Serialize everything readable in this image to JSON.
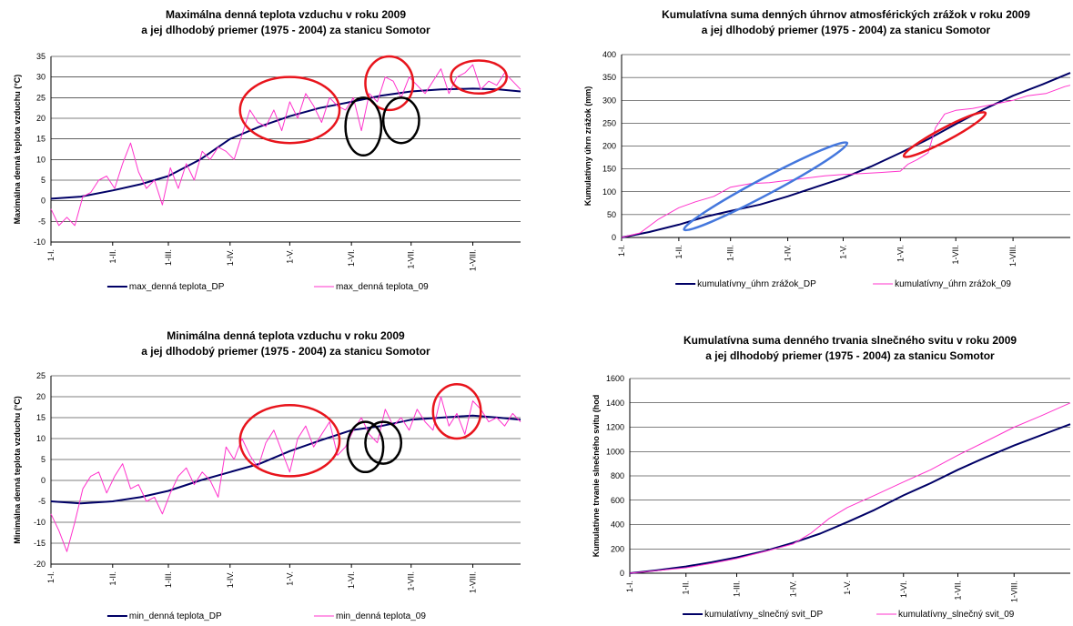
{
  "colors": {
    "dp": "#000066",
    "y09": "#ff33cc",
    "red_ellipse": "#e8141c",
    "black_ellipse": "#000000",
    "blue_ellipse": "#4477dd",
    "grid": "#000000"
  },
  "chart_data": [
    {
      "id": "tmax",
      "type": "line",
      "title": "Maximálna denná teplota vzduchu v roku 2009",
      "subtitle": "a jej dlhodobý priemer (1975 - 2004) za stanicu Somotor",
      "ylabel": "Maximálna denná teplota vzduchu (°C)",
      "xlabel": "",
      "ylim": [
        -10,
        35
      ],
      "yticks": [
        -10,
        -5,
        0,
        5,
        10,
        15,
        20,
        25,
        30,
        35
      ],
      "xlim": [
        0,
        236
      ],
      "xticks": [
        {
          "x": 0,
          "label": "1-I."
        },
        {
          "x": 31,
          "label": "1-II."
        },
        {
          "x": 59,
          "label": "1-III."
        },
        {
          "x": 90,
          "label": "1-IV."
        },
        {
          "x": 120,
          "label": "1-V."
        },
        {
          "x": 151,
          "label": "1-VI."
        },
        {
          "x": 181,
          "label": "1-VII."
        },
        {
          "x": 212,
          "label": "1-VIII."
        }
      ],
      "grid": "horizontal",
      "legend": "bottom",
      "series": [
        {
          "name": "max_denná teplota_DP",
          "role": "dp",
          "x": [
            0,
            15,
            31,
            45,
            59,
            75,
            90,
            105,
            120,
            135,
            151,
            166,
            181,
            196,
            212,
            225,
            236
          ],
          "y": [
            0.5,
            1,
            2.5,
            4,
            6,
            10,
            15,
            18,
            20.5,
            22.5,
            24,
            25.5,
            26.5,
            27,
            27.2,
            27,
            26.5
          ]
        },
        {
          "name": "max_denná teplota_09",
          "role": "y09",
          "x": [
            0,
            4,
            8,
            12,
            16,
            20,
            24,
            28,
            32,
            36,
            40,
            44,
            48,
            52,
            56,
            60,
            64,
            68,
            72,
            76,
            80,
            84,
            88,
            92,
            96,
            100,
            104,
            108,
            112,
            116,
            120,
            124,
            128,
            132,
            136,
            140,
            144,
            148,
            152,
            156,
            160,
            164,
            168,
            172,
            176,
            180,
            184,
            188,
            192,
            196,
            200,
            204,
            208,
            212,
            216,
            220,
            224,
            228,
            232,
            236
          ],
          "y": [
            -2,
            -6,
            -4,
            -6,
            1,
            2,
            5,
            6,
            3,
            9,
            14,
            7,
            3,
            5,
            -1,
            8,
            3,
            9,
            5,
            12,
            10,
            13,
            12,
            10,
            16,
            22,
            19,
            18,
            22,
            17,
            24,
            20,
            26,
            23,
            19,
            25,
            23,
            22,
            25,
            17,
            26,
            24,
            30,
            29,
            25,
            30,
            28,
            26,
            29,
            32,
            26,
            30,
            31,
            33,
            27,
            29,
            28,
            31,
            29,
            27
          ]
        }
      ],
      "annotations": [
        {
          "shape": "ellipse",
          "color": "red",
          "cx": 120,
          "cy": 22,
          "rx": 25,
          "ry": 8
        },
        {
          "shape": "ellipse",
          "color": "red",
          "cx": 170,
          "cy": 28.5,
          "rx": 12,
          "ry": 6.5
        },
        {
          "shape": "ellipse",
          "color": "red",
          "cx": 215,
          "cy": 30,
          "rx": 14,
          "ry": 4
        },
        {
          "shape": "ellipse",
          "color": "black",
          "cx": 157,
          "cy": 18,
          "rx": 9,
          "ry": 7
        },
        {
          "shape": "ellipse",
          "color": "black",
          "cx": 176,
          "cy": 19.5,
          "rx": 9,
          "ry": 5.5
        }
      ]
    },
    {
      "id": "precip",
      "type": "line",
      "title": "Kumulatívna suma denných úhrnov atmosférických zrážok v roku 2009",
      "subtitle": "a jej dlhodobý priemer (1975 - 2004) za stanicu Somotor",
      "ylabel": "Kumulatívny úhrn zrážok (mm)",
      "xlabel": "",
      "ylim": [
        0,
        400
      ],
      "yticks": [
        0,
        50,
        100,
        150,
        200,
        250,
        300,
        350,
        400
      ],
      "xlim": [
        0,
        243
      ],
      "xticks": [
        {
          "x": 0,
          "label": "1-I."
        },
        {
          "x": 31,
          "label": "1-II."
        },
        {
          "x": 59,
          "label": "1-III."
        },
        {
          "x": 90,
          "label": "1-IV."
        },
        {
          "x": 120,
          "label": "1-V."
        },
        {
          "x": 151,
          "label": "1-VI."
        },
        {
          "x": 181,
          "label": "1-VII."
        },
        {
          "x": 212,
          "label": "1-VIII."
        }
      ],
      "grid": "horizontal",
      "legend": "bottom",
      "series": [
        {
          "name": "kumulatívny_úhrn zrážok_DP",
          "role": "dp",
          "x": [
            0,
            15,
            31,
            45,
            59,
            75,
            90,
            105,
            120,
            135,
            151,
            166,
            181,
            196,
            212,
            228,
            243
          ],
          "y": [
            0,
            12,
            28,
            45,
            58,
            72,
            90,
            110,
            130,
            155,
            185,
            215,
            248,
            280,
            310,
            335,
            360
          ]
        },
        {
          "name": "kumulatívny_úhrn zrážok_09",
          "role": "y09",
          "x": [
            0,
            10,
            20,
            31,
            40,
            50,
            59,
            70,
            80,
            90,
            100,
            110,
            120,
            130,
            140,
            151,
            155,
            160,
            166,
            170,
            175,
            181,
            190,
            200,
            212,
            220,
            230,
            240,
            243
          ],
          "y": [
            0,
            10,
            40,
            65,
            78,
            90,
            110,
            118,
            120,
            125,
            130,
            135,
            138,
            140,
            142,
            145,
            160,
            170,
            185,
            240,
            270,
            278,
            282,
            290,
            300,
            310,
            315,
            330,
            333
          ]
        }
      ],
      "annotations": [
        {
          "shape": "ellipse",
          "color": "blue",
          "cx": 78,
          "cy": 112,
          "rx": 50,
          "ry": 18,
          "rotate": -28
        },
        {
          "shape": "ellipse",
          "color": "red",
          "cx": 175,
          "cy": 225,
          "rx": 25,
          "ry": 14,
          "rotate": -28
        }
      ]
    },
    {
      "id": "tmin",
      "type": "line",
      "title": "Minimálna denná teplota vzduchu v roku 2009",
      "subtitle": "a jej dlhodobý priemer (1975 - 2004) za stanicu Somotor",
      "ylabel": "Minimálna denná teplota vzduchu (°C)",
      "xlabel": "",
      "ylim": [
        -20,
        25
      ],
      "yticks": [
        -20,
        -15,
        -10,
        -5,
        0,
        5,
        10,
        15,
        20,
        25
      ],
      "xlim": [
        0,
        236
      ],
      "xticks": [
        {
          "x": 0,
          "label": "1-I."
        },
        {
          "x": 31,
          "label": "1-II."
        },
        {
          "x": 59,
          "label": "1-III."
        },
        {
          "x": 90,
          "label": "1-IV."
        },
        {
          "x": 120,
          "label": "1-V."
        },
        {
          "x": 151,
          "label": "1-VI."
        },
        {
          "x": 181,
          "label": "1-VII."
        },
        {
          "x": 212,
          "label": "1-VIII."
        }
      ],
      "grid": "horizontal",
      "legend": "bottom",
      "series": [
        {
          "name": "min_denná teplota_DP",
          "role": "dp",
          "x": [
            0,
            15,
            31,
            45,
            59,
            75,
            90,
            105,
            120,
            135,
            151,
            166,
            181,
            196,
            212,
            225,
            236
          ],
          "y": [
            -5,
            -5.5,
            -5,
            -4,
            -2.5,
            0,
            2,
            4,
            7,
            9.5,
            12,
            13,
            14.5,
            15,
            15.5,
            15,
            14.5
          ]
        },
        {
          "name": "min_denná teplota_09",
          "role": "y09",
          "x": [
            0,
            4,
            8,
            12,
            16,
            20,
            24,
            28,
            32,
            36,
            40,
            44,
            48,
            52,
            56,
            60,
            64,
            68,
            72,
            76,
            80,
            84,
            88,
            92,
            96,
            100,
            104,
            108,
            112,
            116,
            120,
            124,
            128,
            132,
            136,
            140,
            144,
            148,
            152,
            156,
            160,
            164,
            168,
            172,
            176,
            180,
            184,
            188,
            192,
            196,
            200,
            204,
            208,
            212,
            216,
            220,
            224,
            228,
            232,
            236
          ],
          "y": [
            -8,
            -12,
            -17,
            -10,
            -2,
            1,
            2,
            -3,
            1,
            4,
            -2,
            -1,
            -5,
            -4,
            -8,
            -3,
            1,
            3,
            -1,
            2,
            0,
            -4,
            8,
            5,
            10,
            6,
            3,
            9,
            12,
            7,
            2,
            10,
            13,
            8,
            11,
            14,
            6,
            8,
            12,
            15,
            11,
            9,
            17,
            13,
            15,
            12,
            17,
            14,
            12,
            20,
            13,
            16,
            11,
            19,
            17,
            14,
            15,
            13,
            16,
            14
          ]
        }
      ],
      "annotations": [
        {
          "shape": "ellipse",
          "color": "red",
          "cx": 120,
          "cy": 9.5,
          "rx": 25,
          "ry": 8.5
        },
        {
          "shape": "ellipse",
          "color": "red",
          "cx": 204,
          "cy": 16.5,
          "rx": 12,
          "ry": 6.5
        },
        {
          "shape": "ellipse",
          "color": "black",
          "cx": 158,
          "cy": 8,
          "rx": 9,
          "ry": 6
        },
        {
          "shape": "ellipse",
          "color": "black",
          "cx": 167,
          "cy": 9,
          "rx": 9,
          "ry": 5
        }
      ]
    },
    {
      "id": "sun",
      "type": "line",
      "title": "Kumulatívna suma denného trvania slnečného svitu v roku 2009",
      "subtitle": "a jej dlhodobý priemer (1975 - 2004) za stanicu Somotor",
      "ylabel": "Kumulatívne trvanie slnečného svitu (hod",
      "xlabel": "",
      "ylim": [
        0,
        1600
      ],
      "yticks": [
        0,
        200,
        400,
        600,
        800,
        1000,
        1200,
        1400,
        1600
      ],
      "xlim": [
        0,
        243
      ],
      "xticks": [
        {
          "x": 0,
          "label": "1-I."
        },
        {
          "x": 31,
          "label": "1-II."
        },
        {
          "x": 59,
          "label": "1-III."
        },
        {
          "x": 90,
          "label": "1-IV."
        },
        {
          "x": 120,
          "label": "1-V."
        },
        {
          "x": 151,
          "label": "1-VI."
        },
        {
          "x": 181,
          "label": "1-VII."
        },
        {
          "x": 212,
          "label": "1-VIII."
        }
      ],
      "grid": "horizontal",
      "legend": "bottom",
      "series": [
        {
          "name": "kumulatívny_slnečný svit_DP",
          "role": "dp",
          "x": [
            0,
            15,
            31,
            45,
            59,
            75,
            90,
            105,
            120,
            135,
            151,
            166,
            181,
            196,
            212,
            228,
            243
          ],
          "y": [
            0,
            25,
            55,
            90,
            130,
            185,
            250,
            325,
            420,
            520,
            640,
            740,
            850,
            950,
            1050,
            1140,
            1225
          ]
        },
        {
          "name": "kumulatívny_slnečný svit_09",
          "role": "y09",
          "x": [
            0,
            15,
            31,
            45,
            59,
            75,
            90,
            100,
            110,
            120,
            135,
            151,
            166,
            181,
            196,
            212,
            228,
            243
          ],
          "y": [
            0,
            22,
            45,
            80,
            120,
            180,
            240,
            330,
            450,
            540,
            640,
            750,
            850,
            970,
            1080,
            1200,
            1300,
            1400
          ]
        }
      ],
      "annotations": []
    }
  ]
}
